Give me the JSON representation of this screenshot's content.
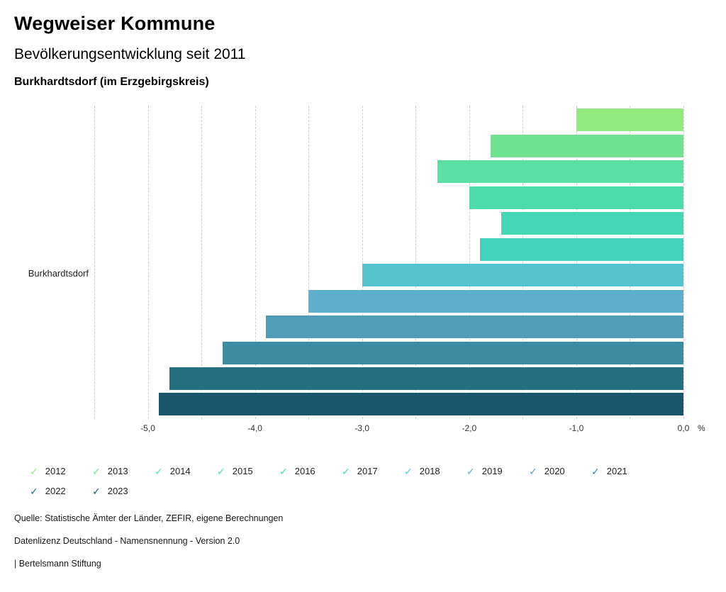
{
  "header": {
    "title": "Wegweiser Kommune",
    "subtitle": "Bevölkerungsentwicklung seit 2011",
    "region": "Burkhardtsdorf (im Erzgebirgskreis)"
  },
  "chart_data": {
    "type": "bar",
    "orientation": "horizontal",
    "category_label": "Burkhardtsdorf",
    "unit": "%",
    "xlim": [
      -5.5,
      0
    ],
    "gridline_step": 0.5,
    "grid": "dashed-vertical",
    "legend_position": "bottom",
    "x_ticks": [
      -5,
      -4,
      -3,
      -2,
      -1,
      0
    ],
    "x_tick_labels": [
      "-5,0",
      "-4,0",
      "-3,0",
      "-2,0",
      "-1,0",
      "0,0"
    ],
    "series": [
      {
        "name": "2012",
        "value": -1.0,
        "color": "#92e97e"
      },
      {
        "name": "2013",
        "value": -1.8,
        "color": "#70e392"
      },
      {
        "name": "2014",
        "value": -2.3,
        "color": "#5ae0a2"
      },
      {
        "name": "2015",
        "value": -2.0,
        "color": "#4cdcab"
      },
      {
        "name": "2016",
        "value": -1.7,
        "color": "#43d8b3"
      },
      {
        "name": "2017",
        "value": -1.9,
        "color": "#3fd3bd"
      },
      {
        "name": "2018",
        "value": -3.0,
        "color": "#54c3cf"
      },
      {
        "name": "2019",
        "value": -3.5,
        "color": "#5dafcb"
      },
      {
        "name": "2020",
        "value": -3.9,
        "color": "#4f9db6"
      },
      {
        "name": "2021",
        "value": -4.3,
        "color": "#3b8ba1"
      },
      {
        "name": "2022",
        "value": -4.8,
        "color": "#247080"
      },
      {
        "name": "2023",
        "value": -4.9,
        "color": "#1a5669"
      }
    ]
  },
  "icons": {
    "check_glyph": "✓"
  },
  "footer": {
    "source": "Quelle: Statistische Ämter der Länder, ZEFIR, eigene Berechnungen",
    "license": "Datenlizenz Deutschland - Namensnennung - Version 2.0",
    "attribution": "| Bertelsmann Stiftung"
  }
}
